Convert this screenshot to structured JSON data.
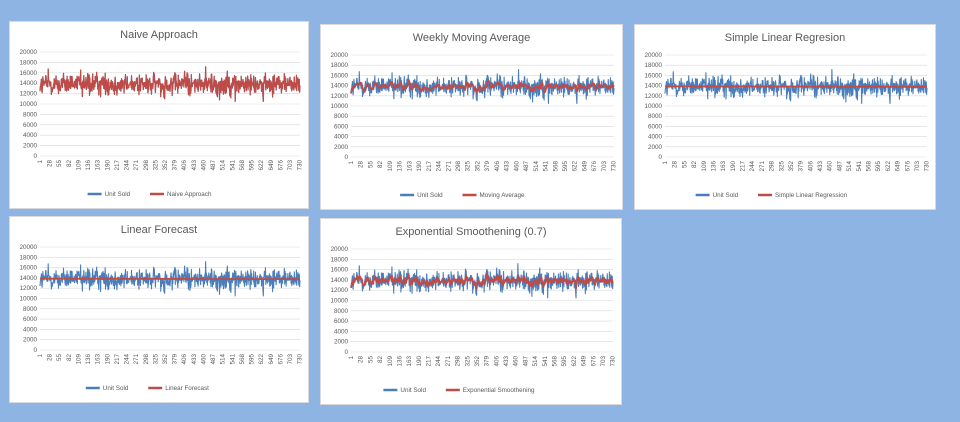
{
  "colors": {
    "background": "#8eb4e3",
    "actual_series": "#4a7ebb",
    "forecast_series": "#be4b48",
    "grid": "#d9d9d9",
    "text": "#595959"
  },
  "chart_data": [
    {
      "type": "line",
      "title": "Naive Approach",
      "ylim": [
        0,
        20000
      ],
      "y_ticks": [
        "20000",
        "18000",
        "16000",
        "14000",
        "12000",
        "10000",
        "8000",
        "6000",
        "4000",
        "2000",
        "0"
      ],
      "x_ticks": [
        "1",
        "28",
        "55",
        "82",
        "109",
        "136",
        "163",
        "190",
        "217",
        "244",
        "271",
        "298",
        "325",
        "352",
        "379",
        "406",
        "433",
        "460",
        "487",
        "514",
        "541",
        "568",
        "595",
        "622",
        "649",
        "676",
        "703",
        "730"
      ],
      "x_range": [
        1,
        731
      ],
      "grid": true,
      "legend_position": "bottom",
      "draw_order": "forecast-on-top",
      "series": [
        {
          "name": "Unit Sold",
          "color": "#4a7ebb",
          "approx_mean": 13800,
          "approx_min": 10500,
          "approx_max": 17300
        },
        {
          "name": "Naive Approach",
          "color": "#be4b48",
          "approx_mean": 13800,
          "approx_min": 10500,
          "approx_max": 17300
        }
      ]
    },
    {
      "type": "line",
      "title": "Weekly Moving Average",
      "ylim": [
        0,
        20000
      ],
      "y_ticks": [
        "20000",
        "18000",
        "16000",
        "14000",
        "12000",
        "10000",
        "8000",
        "6000",
        "4000",
        "2000",
        "0"
      ],
      "x_ticks": [
        "1",
        "28",
        "55",
        "82",
        "109",
        "136",
        "163",
        "190",
        "217",
        "244",
        "271",
        "298",
        "325",
        "352",
        "379",
        "406",
        "433",
        "460",
        "487",
        "514",
        "541",
        "568",
        "595",
        "622",
        "649",
        "676",
        "703",
        "730"
      ],
      "x_range": [
        1,
        731
      ],
      "grid": true,
      "legend_position": "bottom",
      "series": [
        {
          "name": "Unit Sold",
          "color": "#4a7ebb",
          "approx_mean": 13800,
          "approx_min": 10500,
          "approx_max": 17300
        },
        {
          "name": "Moving Average",
          "color": "#be4b48",
          "approx_mean": 13800,
          "approx_min": 13000,
          "approx_max": 14600
        }
      ]
    },
    {
      "type": "line",
      "title": "Simple Linear Regresion",
      "ylim": [
        0,
        20000
      ],
      "y_ticks": [
        "20000",
        "18000",
        "16000",
        "14000",
        "12000",
        "10000",
        "8000",
        "6000",
        "4000",
        "2000",
        "0"
      ],
      "x_ticks": [
        "1",
        "28",
        "55",
        "82",
        "109",
        "136",
        "163",
        "190",
        "217",
        "244",
        "271",
        "298",
        "325",
        "352",
        "379",
        "406",
        "433",
        "460",
        "487",
        "514",
        "541",
        "568",
        "595",
        "622",
        "649",
        "676",
        "703",
        "730"
      ],
      "x_range": [
        1,
        731
      ],
      "grid": true,
      "legend_position": "bottom",
      "series": [
        {
          "name": "Unit Sold",
          "color": "#4a7ebb",
          "approx_mean": 13800,
          "approx_min": 10500,
          "approx_max": 17300
        },
        {
          "name": "Simple Linear Regression",
          "color": "#be4b48",
          "approx_start": 13850,
          "approx_end": 13750
        }
      ]
    },
    {
      "type": "line",
      "title": "Linear Forecast",
      "ylim": [
        0,
        20000
      ],
      "y_ticks": [
        "20000",
        "18000",
        "16000",
        "14000",
        "12000",
        "10000",
        "8000",
        "6000",
        "4000",
        "2000",
        "0"
      ],
      "x_ticks": [
        "1",
        "28",
        "55",
        "82",
        "109",
        "136",
        "163",
        "190",
        "217",
        "244",
        "271",
        "298",
        "325",
        "352",
        "379",
        "406",
        "433",
        "460",
        "487",
        "514",
        "541",
        "568",
        "595",
        "622",
        "649",
        "676",
        "703",
        "730"
      ],
      "x_range": [
        1,
        731
      ],
      "grid": true,
      "legend_position": "bottom",
      "series": [
        {
          "name": "Unit Sold",
          "color": "#4a7ebb",
          "approx_mean": 13800,
          "approx_min": 10500,
          "approx_max": 17300
        },
        {
          "name": "Linear Forecast",
          "color": "#be4b48",
          "approx_start": 13850,
          "approx_end": 13750
        }
      ]
    },
    {
      "type": "line",
      "title": "Exponential Smoothening (0.7)",
      "ylim": [
        0,
        20000
      ],
      "y_ticks": [
        "20000",
        "18000",
        "16000",
        "14000",
        "12000",
        "10000",
        "8000",
        "6000",
        "4000",
        "2000",
        "0"
      ],
      "x_ticks": [
        "1",
        "28",
        "55",
        "82",
        "109",
        "136",
        "163",
        "190",
        "217",
        "244",
        "271",
        "298",
        "325",
        "352",
        "379",
        "406",
        "433",
        "460",
        "487",
        "514",
        "541",
        "568",
        "595",
        "622",
        "649",
        "676",
        "703",
        "730"
      ],
      "x_range": [
        1,
        731
      ],
      "grid": true,
      "legend_position": "bottom",
      "series": [
        {
          "name": "Unit Sold",
          "color": "#4a7ebb",
          "approx_mean": 13800,
          "approx_min": 10500,
          "approx_max": 17300
        },
        {
          "name": "Exponential Smoothening",
          "color": "#be4b48",
          "approx_mean": 13800,
          "approx_min": 12700,
          "approx_max": 14900
        }
      ]
    }
  ]
}
